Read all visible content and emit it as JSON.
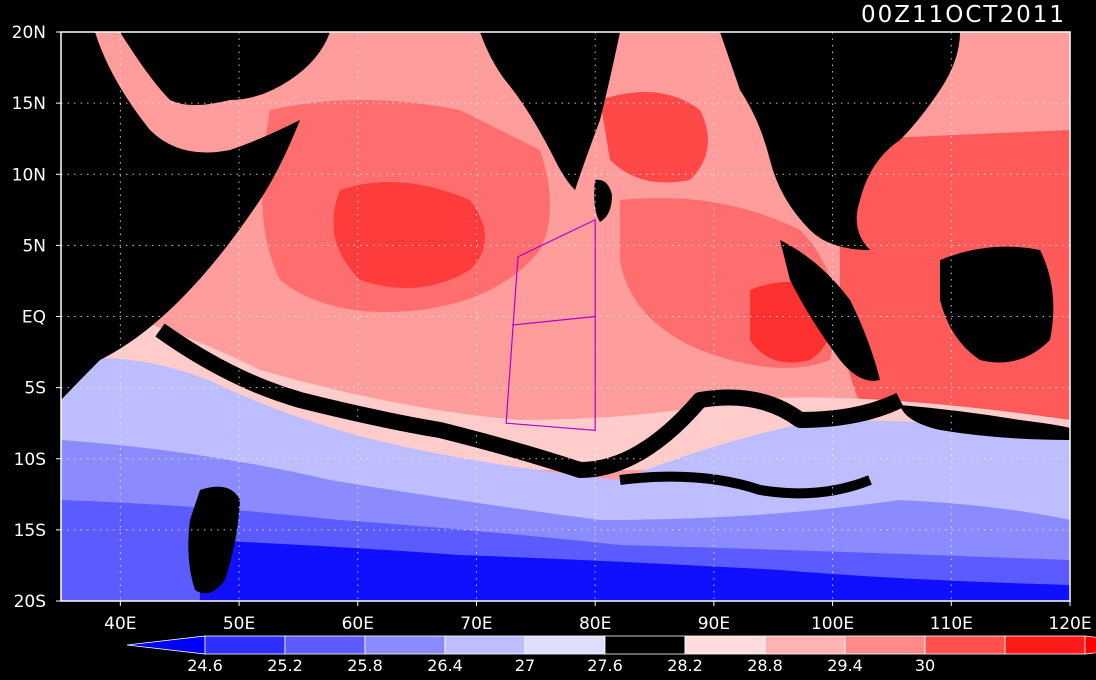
{
  "title": "00Z11OCT2011",
  "map": {
    "lon_range": [
      35,
      120
    ],
    "lat_range": [
      -20,
      20
    ],
    "lon_ticks": [
      {
        "v": 40,
        "label": "40E"
      },
      {
        "v": 50,
        "label": "50E"
      },
      {
        "v": 60,
        "label": "60E"
      },
      {
        "v": 70,
        "label": "70E"
      },
      {
        "v": 80,
        "label": "80E"
      },
      {
        "v": 90,
        "label": "90E"
      },
      {
        "v": 100,
        "label": "100E"
      },
      {
        "v": 110,
        "label": "110E"
      },
      {
        "v": 120,
        "label": "120E"
      }
    ],
    "lat_ticks": [
      {
        "v": 20,
        "label": "20N"
      },
      {
        "v": 15,
        "label": "15N"
      },
      {
        "v": 10,
        "label": "10N"
      },
      {
        "v": 5,
        "label": "5N"
      },
      {
        "v": 0,
        "label": "EQ"
      },
      {
        "v": -5,
        "label": "5S"
      },
      {
        "v": -10,
        "label": "10S"
      },
      {
        "v": -15,
        "label": "15S"
      },
      {
        "v": -20,
        "label": "20S"
      }
    ],
    "grid": "dotted",
    "land_color": "#000000",
    "study_box_lonlat": [
      [
        73.5,
        4.2
      ],
      [
        80.0,
        6.8
      ],
      [
        80.0,
        -8.0
      ],
      [
        72.5,
        -7.5
      ]
    ],
    "box_color": "#b000d0",
    "cooler_south_pattern": "warm band north of ~5S, sharp cool front near 8S-12S",
    "features": [
      "warm pool equatorial central Indian Ocean",
      "cold tongue southern Indian Ocean"
    ]
  },
  "colorbar": {
    "levels": [
      "24.6",
      "25.2",
      "25.8",
      "26.4",
      "27",
      "27.6",
      "28.2",
      "28.8",
      "29.4",
      "30"
    ],
    "colors": [
      "#0000ff",
      "#2e2eff",
      "#5b5bff",
      "#8b8bff",
      "#bdbdff",
      "#dedeff",
      "#000000",
      "#ffdcdc",
      "#ffb4b4",
      "#ff8a8a",
      "#ff5050",
      "#ff1a1a",
      "#ff0000"
    ]
  }
}
